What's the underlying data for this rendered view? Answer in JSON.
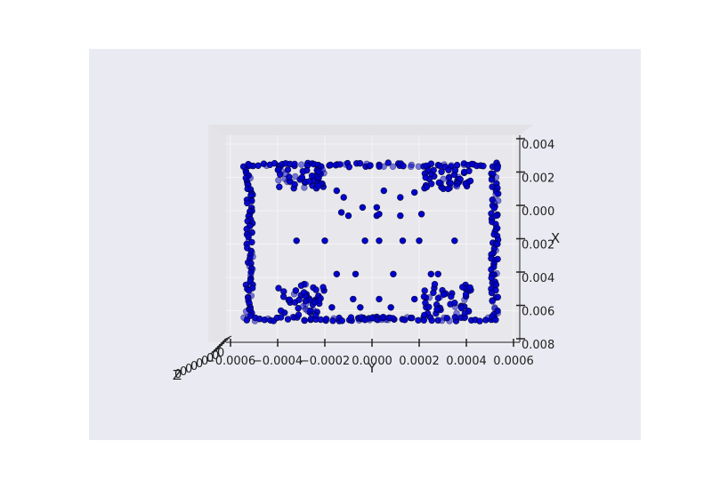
{
  "chart_data": {
    "type": "scatter",
    "projection": "3d",
    "view": "top-down along Z",
    "colors": {
      "point": "#0000cc",
      "outline": "#000033",
      "axes_background": "#eaeaf2",
      "pane": "#e4e4e8"
    },
    "xlabel": "X",
    "ylabel": "Y",
    "zlabel": "Z",
    "y_ticks": [
      "−0.0006",
      "−0.0004",
      "−0.0002",
      "0.0000",
      "0.0002",
      "0.0004",
      "0.0006"
    ],
    "x_ticks": [
      "0.004",
      "0.002",
      "0.000",
      "0.002",
      "0.004",
      "0.006",
      "0.008"
    ],
    "y_range": [
      -0.0006,
      0.0006
    ],
    "x_range": [
      -0.004,
      0.008
    ],
    "grid": true,
    "point_groups": [
      {
        "name": "outer-frame-top",
        "y_range": [
          -0.00053,
          0.00053
        ],
        "x": -0.00275
      },
      {
        "name": "outer-frame-bottom",
        "y_range": [
          -0.00053,
          0.00053
        ],
        "x": 0.0065
      },
      {
        "name": "outer-frame-left",
        "y": -0.00052,
        "x_range": [
          -0.00275,
          0.0065
        ]
      },
      {
        "name": "outer-frame-right",
        "y": 0.00052,
        "x_range": [
          -0.00275,
          0.0065
        ]
      },
      {
        "name": "upper-left-cluster",
        "y_range": [
          -0.0004,
          -0.0002
        ],
        "x_range": [
          -0.0025,
          -0.0013
        ]
      },
      {
        "name": "upper-right-cluster",
        "y_range": [
          0.00022,
          0.00042
        ],
        "x_range": [
          -0.0025,
          -0.0013
        ]
      },
      {
        "name": "lower-left-cluster",
        "y_range": [
          -0.0004,
          -0.0002
        ],
        "x_range": [
          0.0044,
          0.0063
        ]
      },
      {
        "name": "lower-right-cluster",
        "y_range": [
          0.00022,
          0.00042
        ],
        "x_range": [
          0.0044,
          0.0063
        ]
      },
      {
        "name": "bottom-center-bar",
        "y_range": [
          -8e-05,
          8e-05
        ],
        "x": 0.0065
      }
    ],
    "scattered_points": [
      [
        -0.00015,
        -0.0012
      ],
      [
        5e-05,
        -0.0012
      ],
      [
        0.00018,
        -0.0011
      ],
      [
        -0.0001,
        0.0003
      ],
      [
        2e-05,
        0.0003
      ],
      [
        0.00012,
        0.0003
      ],
      [
        -0.00013,
        0.0001
      ],
      [
        3e-05,
        0.0002
      ],
      [
        0.00021,
        0.0002
      ],
      [
        -0.00032,
        0.0018
      ],
      [
        -0.0002,
        0.0018
      ],
      [
        -3e-05,
        0.0018
      ],
      [
        3e-05,
        0.0018
      ],
      [
        0.00013,
        0.0018
      ],
      [
        0.0002,
        0.0018
      ],
      [
        0.00035,
        0.0018
      ],
      [
        -0.00015,
        0.0038
      ],
      [
        -7e-05,
        0.0038
      ],
      [
        9e-05,
        0.0038
      ],
      [
        0.00025,
        0.0038
      ],
      [
        0.00028,
        0.0038
      ],
      [
        -0.00017,
        0.0058
      ],
      [
        -5e-05,
        0.0058
      ],
      [
        8e-05,
        0.0058
      ],
      [
        -8e-05,
        0.0053
      ],
      [
        3e-05,
        0.0053
      ],
      [
        0.00018,
        0.0053
      ],
      [
        -4e-05,
        -0.0002
      ],
      [
        2e-05,
        -0.0002
      ],
      [
        -0.00012,
        -0.0008
      ],
      [
        0.00012,
        -0.0008
      ]
    ]
  }
}
